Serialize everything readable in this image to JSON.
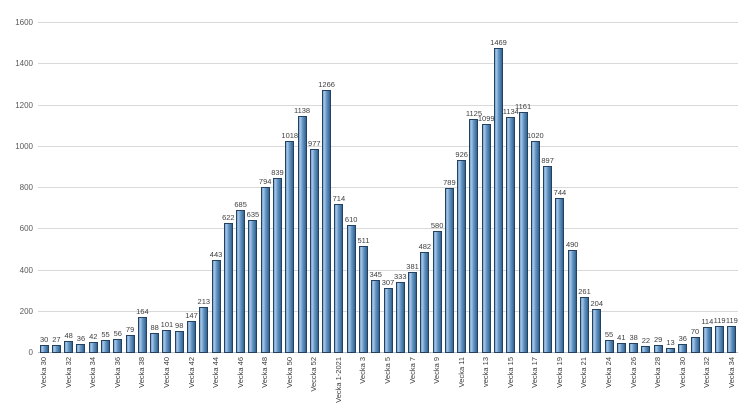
{
  "chart_data": {
    "type": "bar",
    "title": "",
    "xlabel": "",
    "ylabel": "",
    "y_axis_title_clipped_fragment": "(",
    "ylim": [
      0,
      1600
    ],
    "y_ticks": [
      0,
      200,
      400,
      600,
      800,
      1000,
      1200,
      1400,
      1600
    ],
    "grid": true,
    "legend": "none",
    "value_labels_shown": true,
    "colors": {
      "bar_fill_main": "#6495c5",
      "bar_fill_light": "#a3c4e5",
      "bar_fill_dark": "#35618c",
      "bar_border": "#24425f",
      "gridline": "#d9d9d9",
      "axis_text": "#595959",
      "value_text": "#3f3f3f",
      "background": "#ffffff"
    },
    "categories": [
      "Vecka 30",
      "",
      "Vecka 32",
      "",
      "Vecka 34",
      "",
      "Vecka 36",
      "",
      "Vecka 38",
      "",
      "Vecka 40",
      "",
      "Vecka 42",
      "",
      "Vecka 44",
      "",
      "Vecka 46",
      "",
      "Vecka 48",
      "",
      "Vecka 50",
      "",
      "Veccka 52",
      "",
      "Vecka 1-2021",
      "",
      "Vecka 3",
      "",
      "Vecka 5",
      "",
      "Vecka 7",
      "",
      "Vecka 9",
      "",
      "Vecka 11",
      "",
      "vecka 13",
      "",
      "Vecka 15",
      "",
      "Vecka 17",
      "",
      "Vecka 19",
      "",
      "Vecka 21",
      "",
      "Vecka 24",
      "",
      "Vecka 26",
      "",
      "Vecka 28",
      "",
      "Vecka 30",
      "",
      "Vecka 32",
      "",
      "Vecka 34"
    ],
    "values": [
      30,
      27,
      48,
      36,
      42,
      55,
      56,
      79,
      164,
      88,
      101,
      98,
      147,
      213,
      443,
      622,
      685,
      635,
      794,
      839,
      1018,
      1138,
      977,
      1266,
      714,
      610,
      511,
      345,
      307,
      333,
      381,
      482,
      580,
      789,
      926,
      1125,
      1099,
      1469,
      1134,
      1161,
      1020,
      897,
      744,
      490,
      261,
      204,
      55,
      41,
      38,
      22,
      29,
      13,
      36,
      70,
      114,
      119,
      119
    ]
  }
}
